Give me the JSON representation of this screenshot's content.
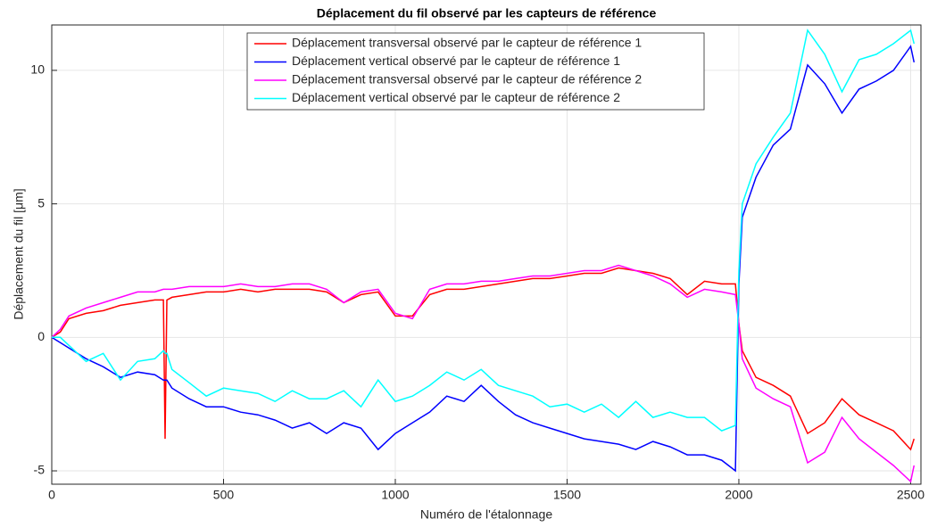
{
  "chart_data": {
    "type": "line",
    "title": "Déplacement du fil observé par les capteurs de référence",
    "x_label": "Numéro de l'étalonnage",
    "y_label": "Déplacement du fil [μm]",
    "x": [
      0,
      25,
      50,
      100,
      150,
      200,
      250,
      300,
      325,
      330,
      335,
      350,
      400,
      450,
      500,
      550,
      600,
      650,
      700,
      750,
      800,
      850,
      900,
      950,
      1000,
      1050,
      1100,
      1150,
      1200,
      1250,
      1300,
      1350,
      1400,
      1450,
      1500,
      1550,
      1600,
      1650,
      1700,
      1750,
      1800,
      1850,
      1900,
      1950,
      1990,
      2000,
      2010,
      2050,
      2100,
      2150,
      2200,
      2250,
      2300,
      2350,
      2400,
      2450,
      2500,
      2510
    ],
    "series": [
      {
        "name": "Déplacement transversal observé par le capteur de référence 1",
        "color": "#ff0000",
        "values": [
          0,
          0.2,
          0.7,
          0.9,
          1.0,
          1.2,
          1.3,
          1.4,
          1.4,
          -3.8,
          1.4,
          1.5,
          1.6,
          1.7,
          1.7,
          1.8,
          1.7,
          1.8,
          1.8,
          1.8,
          1.7,
          1.3,
          1.6,
          1.7,
          0.8,
          0.8,
          1.6,
          1.8,
          1.8,
          1.9,
          2.0,
          2.1,
          2.2,
          2.2,
          2.3,
          2.4,
          2.4,
          2.6,
          2.5,
          2.4,
          2.2,
          1.6,
          2.1,
          2.0,
          2.0,
          0.5,
          -0.5,
          -1.5,
          -1.8,
          -2.2,
          -3.6,
          -3.2,
          -2.3,
          -2.9,
          -3.2,
          -3.5,
          -4.2,
          -3.8
        ]
      },
      {
        "name": "Déplacement vertical observé par le capteur de référence 1",
        "color": "#0000ff",
        "values": [
          0,
          -0.2,
          -0.4,
          -0.8,
          -1.1,
          -1.5,
          -1.3,
          -1.4,
          -1.6,
          -1.6,
          -1.6,
          -1.9,
          -2.3,
          -2.6,
          -2.6,
          -2.8,
          -2.9,
          -3.1,
          -3.4,
          -3.2,
          -3.6,
          -3.2,
          -3.4,
          -4.2,
          -3.6,
          -3.2,
          -2.8,
          -2.2,
          -2.4,
          -1.8,
          -2.4,
          -2.9,
          -3.2,
          -3.4,
          -3.6,
          -3.8,
          -3.9,
          -4.0,
          -4.2,
          -3.9,
          -4.1,
          -4.4,
          -4.4,
          -4.6,
          -5.0,
          2.0,
          4.5,
          6.0,
          7.2,
          7.8,
          10.2,
          9.5,
          8.4,
          9.3,
          9.6,
          10.0,
          10.9,
          10.3
        ]
      },
      {
        "name": "Déplacement transversal observé par le capteur de référence 2",
        "color": "#ff00ff",
        "values": [
          0,
          0.3,
          0.8,
          1.1,
          1.3,
          1.5,
          1.7,
          1.7,
          1.8,
          1.8,
          1.8,
          1.8,
          1.9,
          1.9,
          1.9,
          2.0,
          1.9,
          1.9,
          2.0,
          2.0,
          1.8,
          1.3,
          1.7,
          1.8,
          0.9,
          0.7,
          1.8,
          2.0,
          2.0,
          2.1,
          2.1,
          2.2,
          2.3,
          2.3,
          2.4,
          2.5,
          2.5,
          2.7,
          2.5,
          2.3,
          2.0,
          1.5,
          1.8,
          1.7,
          1.6,
          0.5,
          -0.8,
          -1.9,
          -2.3,
          -2.6,
          -4.7,
          -4.3,
          -3.0,
          -3.8,
          -4.3,
          -4.8,
          -5.4,
          -4.8
        ]
      },
      {
        "name": "Déplacement vertical observé par le capteur de référence 2",
        "color": "#00ffff",
        "values": [
          0,
          0,
          -0.3,
          -0.9,
          -0.6,
          -1.6,
          -0.9,
          -0.8,
          -0.5,
          -0.6,
          -0.6,
          -1.2,
          -1.7,
          -2.2,
          -1.9,
          -2.0,
          -2.1,
          -2.4,
          -2.0,
          -2.3,
          -2.3,
          -2.0,
          -2.6,
          -1.6,
          -2.4,
          -2.2,
          -1.8,
          -1.3,
          -1.6,
          -1.2,
          -1.8,
          -2.0,
          -2.2,
          -2.6,
          -2.5,
          -2.8,
          -2.5,
          -3.0,
          -2.4,
          -3.0,
          -2.8,
          -3.0,
          -3.0,
          -3.5,
          -3.3,
          2.5,
          5.0,
          6.5,
          7.5,
          8.4,
          11.5,
          10.6,
          9.2,
          10.4,
          10.6,
          11.0,
          11.5,
          11.0
        ]
      }
    ],
    "xlim": [
      0,
      2530
    ],
    "ylim": [
      -5.5,
      11.7
    ],
    "xticks": [
      0,
      500,
      1000,
      1500,
      2000,
      2500
    ],
    "yticks": [
      -5,
      0,
      5,
      10
    ],
    "grid": true,
    "legend_position": "north"
  }
}
